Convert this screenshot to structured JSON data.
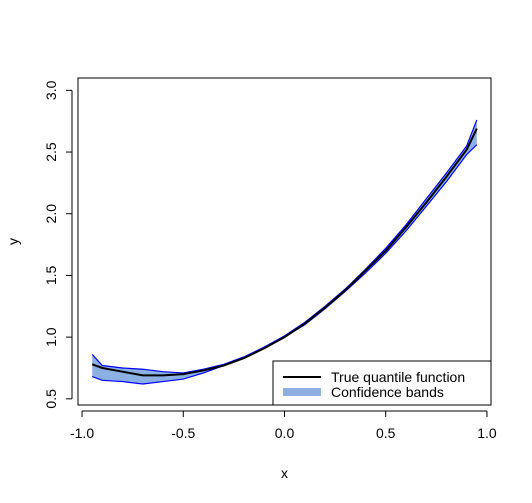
{
  "chart_data": {
    "type": "line",
    "title": "",
    "xlabel": "x",
    "ylabel": "y",
    "xlim": [
      -1.02,
      1.02
    ],
    "ylim": [
      0.45,
      3.1
    ],
    "x_ticks": [
      -1.0,
      -0.5,
      0.0,
      0.5,
      1.0
    ],
    "x_tick_labels": [
      "-1.0",
      "-0.5",
      "0.0",
      "0.5",
      "1.0"
    ],
    "y_ticks": [
      0.5,
      1.0,
      1.5,
      2.0,
      2.5,
      3.0
    ],
    "y_tick_labels": [
      "0.5",
      "1.0",
      "1.5",
      "2.0",
      "2.5",
      "3.0"
    ],
    "grid": false,
    "legend_position": "bottom-right",
    "band": {
      "name": "Confidence bands",
      "fill_color": "#8cb0e4",
      "edge_color": "#0000ff",
      "upper": [
        [
          -0.95,
          0.86
        ],
        [
          -0.9,
          0.77
        ],
        [
          -0.8,
          0.75
        ],
        [
          -0.7,
          0.74
        ],
        [
          -0.6,
          0.72
        ],
        [
          -0.5,
          0.71
        ],
        [
          -0.4,
          0.74
        ],
        [
          -0.3,
          0.78
        ],
        [
          -0.2,
          0.84
        ],
        [
          -0.1,
          0.92
        ],
        [
          0.0,
          1.01
        ],
        [
          0.1,
          1.12
        ],
        [
          0.2,
          1.25
        ],
        [
          0.3,
          1.39
        ],
        [
          0.4,
          1.55
        ],
        [
          0.5,
          1.72
        ],
        [
          0.6,
          1.91
        ],
        [
          0.7,
          2.12
        ],
        [
          0.8,
          2.33
        ],
        [
          0.9,
          2.55
        ],
        [
          0.95,
          2.76
        ]
      ],
      "lower": [
        [
          -0.95,
          0.68
        ],
        [
          -0.9,
          0.65
        ],
        [
          -0.8,
          0.64
        ],
        [
          -0.7,
          0.62
        ],
        [
          -0.6,
          0.64
        ],
        [
          -0.5,
          0.66
        ],
        [
          -0.4,
          0.71
        ],
        [
          -0.3,
          0.77
        ],
        [
          -0.2,
          0.83
        ],
        [
          -0.1,
          0.91
        ],
        [
          0.0,
          1.0
        ],
        [
          0.1,
          1.1
        ],
        [
          0.2,
          1.23
        ],
        [
          0.3,
          1.37
        ],
        [
          0.4,
          1.52
        ],
        [
          0.5,
          1.68
        ],
        [
          0.6,
          1.86
        ],
        [
          0.7,
          2.06
        ],
        [
          0.8,
          2.26
        ],
        [
          0.9,
          2.48
        ],
        [
          0.95,
          2.56
        ]
      ]
    },
    "series": [
      {
        "name": "True quantile function",
        "color": "#000000",
        "x": [
          -0.95,
          -0.9,
          -0.8,
          -0.7,
          -0.6,
          -0.5,
          -0.4,
          -0.3,
          -0.2,
          -0.1,
          0.0,
          0.1,
          0.2,
          0.3,
          0.4,
          0.5,
          0.6,
          0.7,
          0.8,
          0.9,
          0.95
        ],
        "y": [
          0.78,
          0.75,
          0.72,
          0.69,
          0.69,
          0.7,
          0.73,
          0.77,
          0.83,
          0.91,
          1.0,
          1.11,
          1.24,
          1.38,
          1.54,
          1.7,
          1.89,
          2.09,
          2.3,
          2.52,
          2.69
        ]
      }
    ],
    "legend": [
      {
        "label": "True quantile function",
        "symbol": "line",
        "color": "#000000"
      },
      {
        "label": "Confidence bands",
        "symbol": "thick-line",
        "color": "#8cb0e4"
      }
    ]
  }
}
